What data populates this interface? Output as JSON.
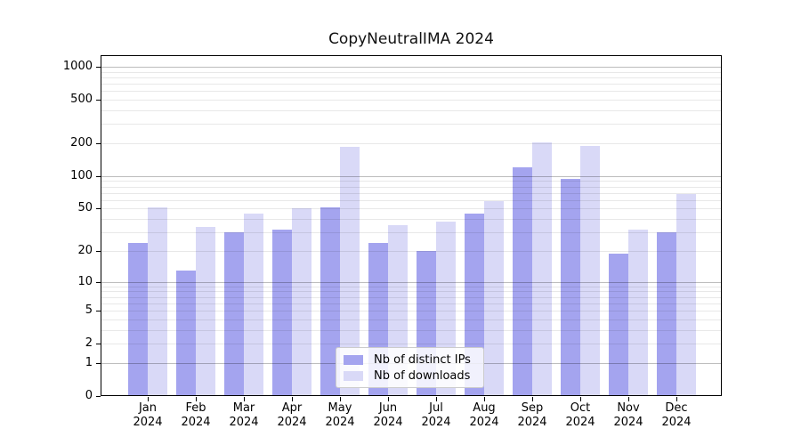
{
  "chart_data": {
    "type": "bar",
    "title": "CopyNeutralIMA 2024",
    "categories": [
      "Jan",
      "Feb",
      "Mar",
      "Apr",
      "May",
      "Jun",
      "Jul",
      "Aug",
      "Sep",
      "Oct",
      "Nov",
      "Dec"
    ],
    "x_tick_label_year": "2024",
    "series": [
      {
        "name": "Nb of distinct IPs",
        "color": "#a4a4ef",
        "values": [
          24,
          13,
          30,
          32,
          51,
          24,
          20,
          45,
          120,
          95,
          19,
          30
        ]
      },
      {
        "name": "Nb of downloads",
        "color": "#d9d9f7",
        "values": [
          51,
          34,
          45,
          50,
          187,
          35,
          38,
          59,
          205,
          190,
          32,
          68
        ]
      }
    ],
    "y_scale": "log1p",
    "y_ticks": [
      0,
      1,
      2,
      5,
      10,
      20,
      50,
      100,
      200,
      500,
      1000
    ],
    "y_major_gridlines": [
      1,
      10,
      100,
      1000
    ],
    "ylim": [
      0,
      1274
    ],
    "grid": true,
    "legend_position": "lower center inside"
  }
}
